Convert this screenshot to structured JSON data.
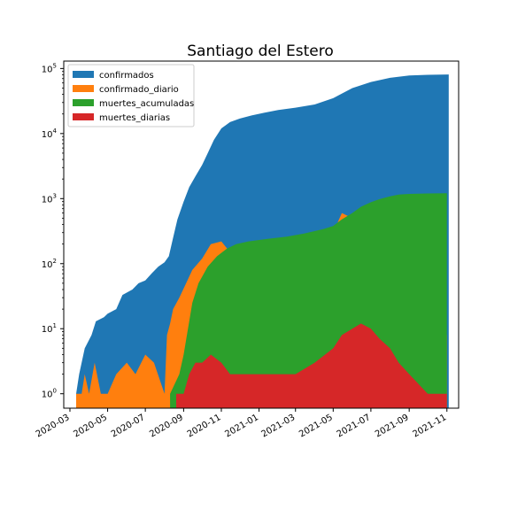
{
  "chart_data": {
    "type": "area",
    "title": "Santiago del Estero",
    "xlabel": "",
    "ylabel": "",
    "yscale": "log",
    "ylim": [
      0.6,
      130000
    ],
    "xlim": [
      "2020-02-20",
      "2021-11-20"
    ],
    "grid": false,
    "legend_position": "top-left",
    "x_ticks": [
      "2020-03",
      "2020-05",
      "2020-07",
      "2020-09",
      "2020-11",
      "2021-01",
      "2021-03",
      "2021-05",
      "2021-07",
      "2021-09",
      "2021-11"
    ],
    "y_ticks": [
      {
        "value": 1,
        "base": "10",
        "exp": "0"
      },
      {
        "value": 10,
        "base": "10",
        "exp": "1"
      },
      {
        "value": 100,
        "base": "10",
        "exp": "2"
      },
      {
        "value": 1000,
        "base": "10",
        "exp": "3"
      },
      {
        "value": 10000,
        "base": "10",
        "exp": "4"
      },
      {
        "value": 100000,
        "base": "10",
        "exp": "5"
      }
    ],
    "series": [
      {
        "name": "confirmados",
        "color": "#1f77b4",
        "points": [
          [
            "2020-03-11",
            1
          ],
          [
            "2020-03-16",
            2
          ],
          [
            "2020-03-25",
            5
          ],
          [
            "2020-04-05",
            8
          ],
          [
            "2020-04-12",
            13
          ],
          [
            "2020-04-25",
            15
          ],
          [
            "2020-05-01",
            17
          ],
          [
            "2020-05-15",
            20
          ],
          [
            "2020-05-25",
            33
          ],
          [
            "2020-06-10",
            40
          ],
          [
            "2020-06-20",
            50
          ],
          [
            "2020-07-01",
            55
          ],
          [
            "2020-07-12",
            72
          ],
          [
            "2020-07-22",
            90
          ],
          [
            "2020-08-01",
            105
          ],
          [
            "2020-08-08",
            130
          ],
          [
            "2020-08-15",
            250
          ],
          [
            "2020-08-22",
            480
          ],
          [
            "2020-09-01",
            900
          ],
          [
            "2020-09-10",
            1500
          ],
          [
            "2020-09-20",
            2200
          ],
          [
            "2020-10-01",
            3300
          ],
          [
            "2020-10-10",
            5000
          ],
          [
            "2020-10-20",
            8000
          ],
          [
            "2020-11-01",
            12000
          ],
          [
            "2020-11-15",
            15000
          ],
          [
            "2020-12-01",
            17000
          ],
          [
            "2020-12-20",
            19000
          ],
          [
            "2021-01-10",
            21000
          ],
          [
            "2021-02-01",
            23000
          ],
          [
            "2021-03-01",
            25000
          ],
          [
            "2021-04-01",
            28000
          ],
          [
            "2021-05-01",
            35000
          ],
          [
            "2021-06-01",
            50000
          ],
          [
            "2021-07-01",
            62000
          ],
          [
            "2021-08-01",
            72000
          ],
          [
            "2021-09-01",
            78000
          ],
          [
            "2021-10-01",
            80000
          ],
          [
            "2021-11-04",
            81000
          ]
        ]
      },
      {
        "name": "confirmado_diario",
        "color": "#ff7f0e",
        "points": [
          [
            "2020-03-11",
            1
          ],
          [
            "2020-03-20",
            1
          ],
          [
            "2020-03-25",
            2
          ],
          [
            "2020-04-01",
            1
          ],
          [
            "2020-04-10",
            3
          ],
          [
            "2020-04-20",
            1
          ],
          [
            "2020-05-01",
            1
          ],
          [
            "2020-05-15",
            2
          ],
          [
            "2020-06-01",
            3
          ],
          [
            "2020-06-15",
            2
          ],
          [
            "2020-07-01",
            4
          ],
          [
            "2020-07-15",
            3
          ],
          [
            "2020-08-01",
            1
          ],
          [
            "2020-08-05",
            8
          ],
          [
            "2020-08-10",
            12
          ],
          [
            "2020-08-15",
            20
          ],
          [
            "2020-08-25",
            30
          ],
          [
            "2020-09-05",
            50
          ],
          [
            "2020-09-15",
            80
          ],
          [
            "2020-10-01",
            120
          ],
          [
            "2020-10-15",
            200
          ],
          [
            "2020-11-01",
            220
          ],
          [
            "2020-11-15",
            150
          ],
          [
            "2020-12-01",
            100
          ],
          [
            "2020-12-15",
            60
          ],
          [
            "2021-01-01",
            80
          ],
          [
            "2021-01-15",
            60
          ],
          [
            "2021-02-01",
            40
          ],
          [
            "2021-03-01",
            50
          ],
          [
            "2021-04-01",
            100
          ],
          [
            "2021-04-15",
            200
          ],
          [
            "2021-05-01",
            300
          ],
          [
            "2021-05-15",
            600
          ],
          [
            "2021-06-01",
            500
          ],
          [
            "2021-06-15",
            700
          ],
          [
            "2021-07-01",
            550
          ],
          [
            "2021-07-15",
            400
          ],
          [
            "2021-08-01",
            250
          ],
          [
            "2021-08-15",
            120
          ],
          [
            "2021-09-01",
            60
          ],
          [
            "2021-09-15",
            25
          ],
          [
            "2021-10-01",
            10
          ],
          [
            "2021-10-15",
            5
          ],
          [
            "2021-11-01",
            8
          ]
        ]
      },
      {
        "name": "muertes_acumuladas",
        "color": "#2ca02c",
        "points": [
          [
            "2020-08-10",
            1
          ],
          [
            "2020-08-25",
            2
          ],
          [
            "2020-09-01",
            4
          ],
          [
            "2020-09-08",
            10
          ],
          [
            "2020-09-15",
            25
          ],
          [
            "2020-09-25",
            50
          ],
          [
            "2020-10-10",
            90
          ],
          [
            "2020-10-25",
            130
          ],
          [
            "2020-11-10",
            170
          ],
          [
            "2020-11-25",
            200
          ],
          [
            "2020-12-15",
            220
          ],
          [
            "2021-01-15",
            240
          ],
          [
            "2021-02-15",
            260
          ],
          [
            "2021-03-15",
            290
          ],
          [
            "2021-04-15",
            340
          ],
          [
            "2021-05-01",
            380
          ],
          [
            "2021-05-15",
            480
          ],
          [
            "2021-06-01",
            600
          ],
          [
            "2021-06-15",
            750
          ],
          [
            "2021-07-01",
            880
          ],
          [
            "2021-07-15",
            980
          ],
          [
            "2021-08-01",
            1080
          ],
          [
            "2021-08-15",
            1150
          ],
          [
            "2021-09-01",
            1180
          ],
          [
            "2021-10-01",
            1200
          ],
          [
            "2021-11-01",
            1210
          ]
        ]
      },
      {
        "name": "muertes_diarias",
        "color": "#d62728",
        "points": [
          [
            "2020-08-20",
            1
          ],
          [
            "2020-09-01",
            1
          ],
          [
            "2020-09-10",
            2
          ],
          [
            "2020-09-20",
            3
          ],
          [
            "2020-10-01",
            3
          ],
          [
            "2020-10-15",
            4
          ],
          [
            "2020-11-01",
            3
          ],
          [
            "2020-11-15",
            2
          ],
          [
            "2020-12-01",
            2
          ],
          [
            "2021-01-01",
            2
          ],
          [
            "2021-02-01",
            2
          ],
          [
            "2021-03-01",
            2
          ],
          [
            "2021-04-01",
            3
          ],
          [
            "2021-05-01",
            5
          ],
          [
            "2021-05-15",
            8
          ],
          [
            "2021-06-01",
            10
          ],
          [
            "2021-06-15",
            12
          ],
          [
            "2021-07-01",
            10
          ],
          [
            "2021-07-15",
            7
          ],
          [
            "2021-08-01",
            5
          ],
          [
            "2021-08-15",
            3
          ],
          [
            "2021-09-01",
            2
          ],
          [
            "2021-10-01",
            1
          ],
          [
            "2021-11-01",
            1
          ]
        ]
      }
    ]
  }
}
